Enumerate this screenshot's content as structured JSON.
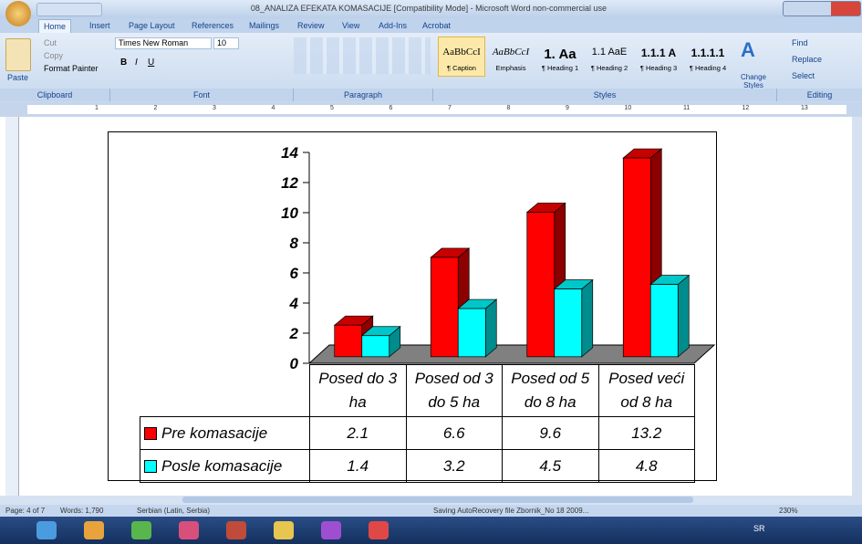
{
  "window": {
    "title": "08_ANALIZA EFEKATA KOMASACIJE [Compatibility Mode] - Microsoft Word non-commercial use"
  },
  "tabs": [
    "Home",
    "Insert",
    "Page Layout",
    "References",
    "Mailings",
    "Review",
    "View",
    "Add-Ins",
    "Acrobat"
  ],
  "clipboard": {
    "paste": "Paste",
    "cut": "Cut",
    "copy": "Copy",
    "format_painter": "Format Painter",
    "label": "Clipboard"
  },
  "font": {
    "name": "Times New Roman",
    "size": "10",
    "bold": "B",
    "italic": "I",
    "underline": "U",
    "label": "Font"
  },
  "paragraph": {
    "label": "Paragraph"
  },
  "styles": {
    "items": [
      {
        "preview": "AaBbCcI",
        "name": "¶ Caption"
      },
      {
        "preview": "AaBbCcI",
        "name": "Emphasis"
      },
      {
        "preview": "1. Aa",
        "name": "¶ Heading 1"
      },
      {
        "preview": "1.1 AaE",
        "name": "¶ Heading 2"
      },
      {
        "preview": "1.1.1 A",
        "name": "¶ Heading 3"
      },
      {
        "preview": "1.1.1.1",
        "name": "¶ Heading 4"
      }
    ],
    "change": "Change Styles",
    "label": "Styles"
  },
  "editing": {
    "find": "Find",
    "replace": "Replace",
    "select": "Select",
    "label": "Editing"
  },
  "ruler": [
    "1",
    "2",
    "3",
    "4",
    "5",
    "6",
    "7",
    "8",
    "9",
    "10",
    "11",
    "12",
    "13"
  ],
  "status_bar": {
    "page": "Page: 4 of 7",
    "words": "Words: 1,790",
    "language": "Serbian (Latin, Serbia)",
    "message": "Saving AutoRecovery file Zbornik_No 18 2009...",
    "zoom": "230%"
  },
  "taskbar": {
    "language": "SR"
  },
  "chart_data": {
    "type": "bar",
    "three_d": true,
    "data_table": true,
    "categories": [
      "Posed do 3 ha",
      "Posed od 3 do 5 ha",
      "Posed od 5 do 8 ha",
      "Posed veći od 8 ha"
    ],
    "series": [
      {
        "name": "Pre komasacije",
        "color": "#ff0000",
        "values": [
          2.1,
          6.6,
          9.6,
          13.2
        ]
      },
      {
        "name": "Posle komasacije",
        "color": "#00ffff",
        "values": [
          1.4,
          3.2,
          4.5,
          4.8
        ]
      }
    ],
    "ylim": [
      0,
      14
    ],
    "yticks": [
      0,
      2,
      4,
      6,
      8,
      10,
      12,
      14
    ]
  }
}
